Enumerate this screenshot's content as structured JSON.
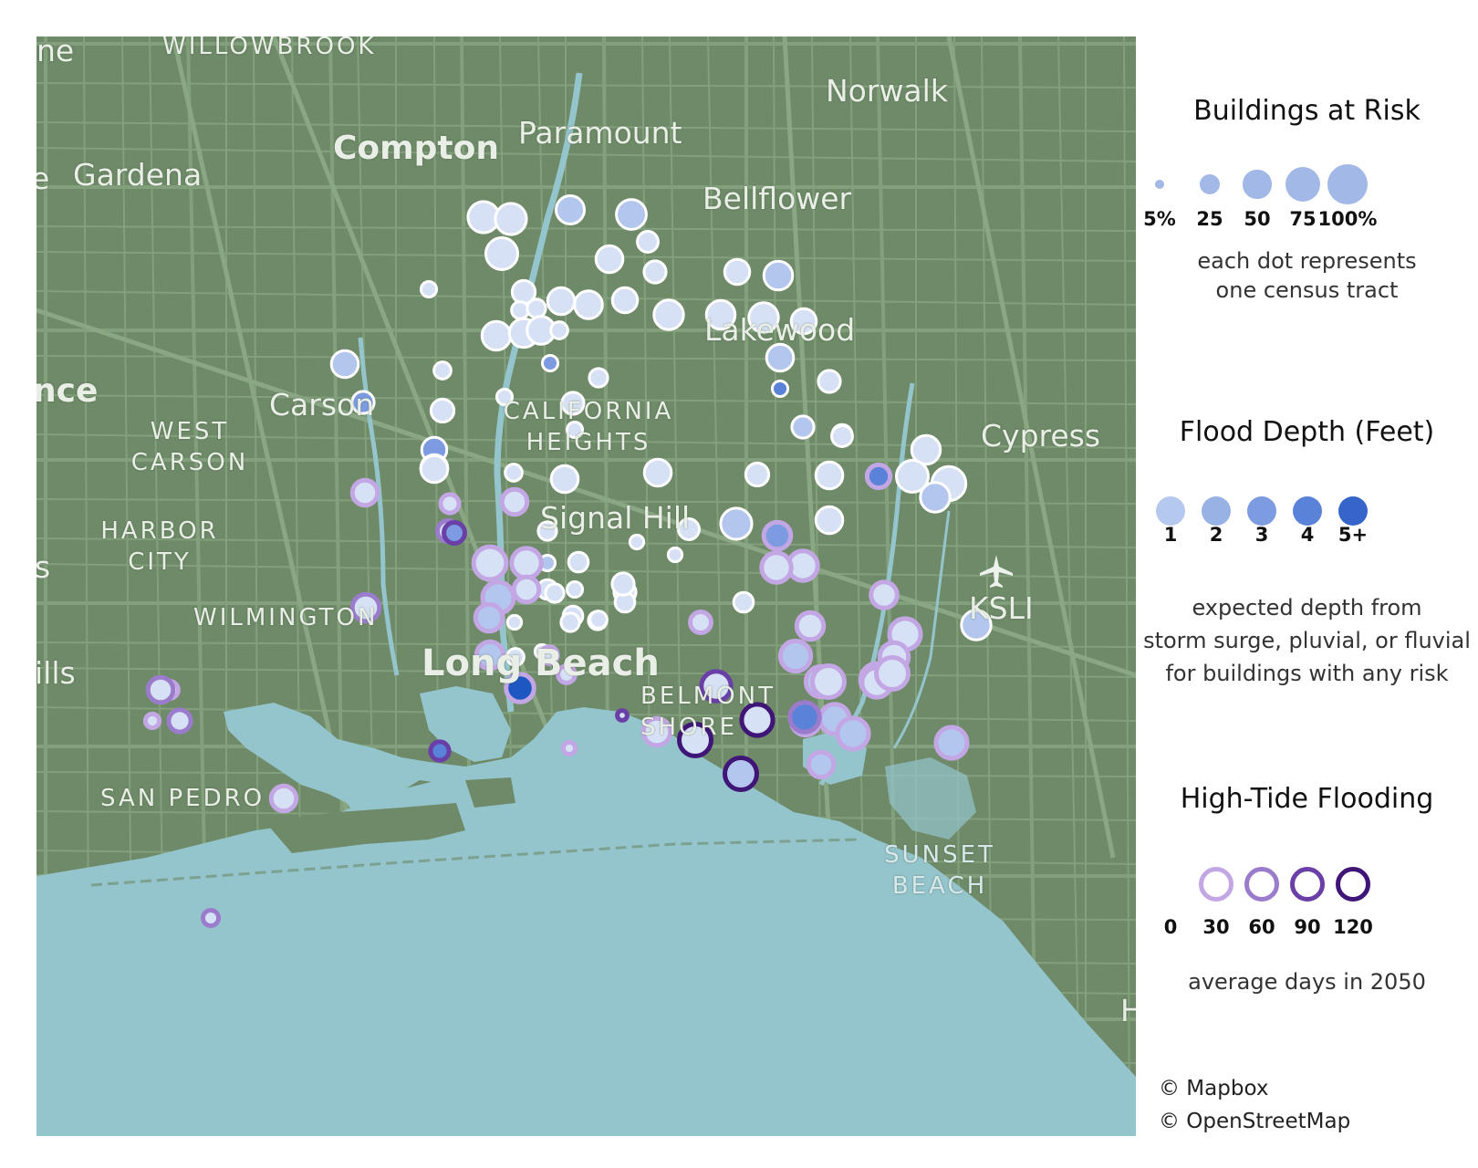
{
  "map": {
    "places": [
      {
        "id": "willowbrook",
        "label": "WILLOWBROOK"
      },
      {
        "id": "norwalk",
        "label": "Norwalk"
      },
      {
        "id": "paramount",
        "label": "Paramount"
      },
      {
        "id": "compton",
        "label": "Compton"
      },
      {
        "id": "gardena",
        "label": "Gardena"
      },
      {
        "id": "bellflower",
        "label": "Bellflower"
      },
      {
        "id": "lakewood",
        "label": "Lakewood"
      },
      {
        "id": "carson",
        "label": "Carson"
      },
      {
        "id": "west-carson",
        "label": "WEST CARSON"
      },
      {
        "id": "california-heights",
        "label": "CALIFORNIA HEIGHTS"
      },
      {
        "id": "cypress",
        "label": "Cypress"
      },
      {
        "id": "harbor-city",
        "label": "HARBOR CITY"
      },
      {
        "id": "signal-hill",
        "label": "Signal Hill"
      },
      {
        "id": "wilmington",
        "label": "WILMINGTON"
      },
      {
        "id": "ksli",
        "label": "KSLI"
      },
      {
        "id": "long-beach",
        "label": "Long Beach"
      },
      {
        "id": "belmont-shore",
        "label": "BELMONT SHORE"
      },
      {
        "id": "san-pedro",
        "label": "SAN PEDRO"
      },
      {
        "id": "sunset-beach",
        "label": "SUNSET BEACH"
      },
      {
        "id": "edge-ne",
        "label": "ne"
      },
      {
        "id": "edge-nce",
        "label": "nce"
      },
      {
        "id": "edge-ills",
        "label": "ills"
      },
      {
        "id": "edge-s",
        "label": "s"
      },
      {
        "id": "edge-e",
        "label": "e"
      },
      {
        "id": "edge-h",
        "label": "H"
      }
    ],
    "airport_icon": "airplane-icon"
  },
  "tracts": [
    {
      "risk": 40,
      "depth": 1,
      "tide": 0
    },
    {
      "risk": 40,
      "depth": 1,
      "tide": 0
    },
    {
      "risk": 33,
      "depth": 2,
      "tide": 0
    },
    {
      "risk": 37,
      "depth": 2,
      "tide": 0
    },
    {
      "risk": 42,
      "depth": 1,
      "tide": 0
    },
    {
      "risk": 18,
      "depth": 1,
      "tide": 0
    },
    {
      "risk": 30,
      "depth": 1,
      "tide": 0
    },
    {
      "risk": 20,
      "depth": 1,
      "tide": 0
    },
    {
      "risk": 10,
      "depth": 1,
      "tide": 0
    },
    {
      "risk": 22,
      "depth": 1,
      "tide": 0
    },
    {
      "risk": 26,
      "depth": 1,
      "tide": 0
    },
    {
      "risk": 10,
      "depth": 3,
      "tide": 0
    },
    {
      "risk": 12,
      "depth": 1,
      "tide": 0
    },
    {
      "risk": 14,
      "depth": 1,
      "tide": 0
    },
    {
      "risk": 30,
      "depth": 1,
      "tide": 0
    },
    {
      "risk": 32,
      "depth": 1,
      "tide": 0
    },
    {
      "risk": 26,
      "depth": 1,
      "tide": 0
    },
    {
      "risk": 36,
      "depth": 1,
      "tide": 0
    },
    {
      "risk": 34,
      "depth": 1,
      "tide": 0
    },
    {
      "risk": 34,
      "depth": 2,
      "tide": 0
    },
    {
      "risk": 36,
      "depth": 1,
      "tide": 0
    },
    {
      "risk": 26,
      "depth": 1,
      "tide": 0
    },
    {
      "risk": 34,
      "depth": 1,
      "tide": 0
    },
    {
      "risk": 34,
      "depth": 1,
      "tide": 0
    },
    {
      "risk": 32,
      "depth": 1,
      "tide": 0
    },
    {
      "risk": 12,
      "depth": 1,
      "tide": 0
    },
    {
      "risk": 30,
      "depth": 2,
      "tide": 0
    },
    {
      "risk": 20,
      "depth": 3,
      "tide": 0
    },
    {
      "risk": 30,
      "depth": 2,
      "tide": 0
    },
    {
      "risk": 10,
      "depth": 4,
      "tide": 0
    },
    {
      "risk": 12,
      "depth": 1,
      "tide": 0
    },
    {
      "risk": 22,
      "depth": 1,
      "tide": 0
    },
    {
      "risk": 10,
      "depth": 1,
      "tide": 0
    },
    {
      "risk": 14,
      "depth": 1,
      "tide": 0
    },
    {
      "risk": 20,
      "depth": 1,
      "tide": 0
    },
    {
      "risk": 10,
      "depth": 1,
      "tide": 0
    },
    {
      "risk": 8,
      "depth": 1,
      "tide": 0
    },
    {
      "risk": 16,
      "depth": 2,
      "tide": 0
    },
    {
      "risk": 26,
      "depth": 3,
      "tide": 0
    },
    {
      "risk": 20,
      "depth": 2,
      "tide": 0
    },
    {
      "risk": 20,
      "depth": 1,
      "tide": 0
    },
    {
      "risk": 30,
      "depth": 1,
      "tide": 0
    },
    {
      "risk": 16,
      "depth": 1,
      "tide": 0
    },
    {
      "risk": 18,
      "depth": 1,
      "tide": 0
    },
    {
      "risk": 30,
      "depth": 1,
      "tide": 0
    },
    {
      "risk": 12,
      "depth": 1,
      "tide": 0
    },
    {
      "risk": 30,
      "depth": 1,
      "tide": 0
    },
    {
      "risk": 40,
      "depth": 2,
      "tide": 0
    },
    {
      "risk": 30,
      "depth": 1,
      "tide": 0
    },
    {
      "risk": 22,
      "depth": 1,
      "tide": 0
    },
    {
      "risk": 30,
      "depth": 1,
      "tide": 0
    },
    {
      "risk": 30,
      "depth": 1,
      "tide": 0
    },
    {
      "risk": 18,
      "depth": 1,
      "tide": 0
    },
    {
      "risk": 14,
      "depth": 1,
      "tide": 0
    },
    {
      "risk": 34,
      "depth": 1,
      "tide": 0
    },
    {
      "risk": 48,
      "depth": 1,
      "tide": 0
    },
    {
      "risk": 42,
      "depth": 1,
      "tide": 0
    },
    {
      "risk": 36,
      "depth": 2,
      "tide": 0
    },
    {
      "risk": 36,
      "depth": 2,
      "tide": 0
    },
    {
      "risk": 22,
      "depth": 4,
      "tide": 30
    },
    {
      "risk": 10,
      "depth": 2,
      "tide": 0
    },
    {
      "risk": 16,
      "depth": 1,
      "tide": 0
    },
    {
      "risk": 10,
      "depth": 1,
      "tide": 0
    },
    {
      "risk": 8,
      "depth": 1,
      "tide": 0
    },
    {
      "risk": 8,
      "depth": 1,
      "tide": 0
    },
    {
      "risk": 16,
      "depth": 1,
      "tide": 0
    },
    {
      "risk": 20,
      "depth": 1,
      "tide": 0
    },
    {
      "risk": 16,
      "depth": 1,
      "tide": 0
    },
    {
      "risk": 16,
      "depth": 1,
      "tide": 0
    },
    {
      "risk": 16,
      "depth": 1,
      "tide": 0
    },
    {
      "risk": 14,
      "depth": 1,
      "tide": 0
    },
    {
      "risk": 14,
      "depth": 1,
      "tide": 0
    },
    {
      "risk": 14,
      "depth": 1,
      "tide": 0
    },
    {
      "risk": 20,
      "depth": 1,
      "tide": 0
    },
    {
      "risk": 12,
      "depth": 1,
      "tide": 0
    },
    {
      "risk": 8,
      "depth": 1,
      "tide": 0
    },
    {
      "risk": 8,
      "depth": 1,
      "tide": 0
    },
    {
      "risk": 12,
      "depth": 1,
      "tide": 0
    },
    {
      "risk": 26,
      "depth": 1,
      "tide": 30
    },
    {
      "risk": 14,
      "depth": 1,
      "tide": 30
    },
    {
      "risk": 18,
      "depth": 1,
      "tide": 60
    },
    {
      "risk": 26,
      "depth": 1,
      "tide": 30
    },
    {
      "risk": 44,
      "depth": 1,
      "tide": 30
    },
    {
      "risk": 36,
      "depth": 1,
      "tide": 30
    },
    {
      "risk": 40,
      "depth": 2,
      "tide": 30
    },
    {
      "risk": 26,
      "depth": 1,
      "tide": 30
    },
    {
      "risk": 30,
      "depth": 2,
      "tide": 30
    },
    {
      "risk": 30,
      "depth": 2,
      "tide": 30
    },
    {
      "risk": 32,
      "depth": 5,
      "tide": 30
    },
    {
      "risk": 12,
      "depth": 1,
      "tide": 30
    },
    {
      "risk": 12,
      "depth": 1,
      "tide": 30
    },
    {
      "risk": 6,
      "depth": 1,
      "tide": 30
    },
    {
      "risk": 30,
      "depth": 1,
      "tide": 30
    },
    {
      "risk": 36,
      "depth": 1,
      "tide": 30
    },
    {
      "risk": 30,
      "depth": 3,
      "tide": 30
    },
    {
      "risk": 18,
      "depth": 1,
      "tide": 30
    },
    {
      "risk": 30,
      "depth": 1,
      "tide": 30
    },
    {
      "risk": 28,
      "depth": 1,
      "tide": 30
    },
    {
      "risk": 36,
      "depth": 1,
      "tide": 30
    },
    {
      "risk": 40,
      "depth": 1,
      "tide": 30
    },
    {
      "risk": 38,
      "depth": 2,
      "tide": 30
    },
    {
      "risk": 38,
      "depth": 2,
      "tide": 30
    },
    {
      "risk": 42,
      "depth": 1,
      "tide": 30
    },
    {
      "risk": 44,
      "depth": 1,
      "tide": 30
    },
    {
      "risk": 34,
      "depth": 1,
      "tide": 30
    },
    {
      "risk": 36,
      "depth": 1,
      "tide": 30
    },
    {
      "risk": 36,
      "depth": 2,
      "tide": 30
    },
    {
      "risk": 42,
      "depth": 1,
      "tide": 30
    },
    {
      "risk": 34,
      "depth": 4,
      "tide": 30
    },
    {
      "risk": 40,
      "depth": 2,
      "tide": 30
    },
    {
      "risk": 26,
      "depth": 2,
      "tide": 30
    },
    {
      "risk": 12,
      "depth": 1,
      "tide": 30
    },
    {
      "risk": 40,
      "depth": 2,
      "tide": 30
    },
    {
      "risk": 26,
      "depth": 1,
      "tide": 30
    },
    {
      "risk": 8,
      "depth": 1,
      "tide": 30
    },
    {
      "risk": 20,
      "depth": 1,
      "tide": 60
    },
    {
      "risk": 26,
      "depth": 1,
      "tide": 60
    },
    {
      "risk": 14,
      "depth": 4,
      "tide": 90
    },
    {
      "risk": 30,
      "depth": 1,
      "tide": 60
    },
    {
      "risk": 36,
      "depth": 4,
      "tide": 60
    },
    {
      "risk": 36,
      "depth": 1,
      "tide": 90
    },
    {
      "risk": 42,
      "depth": 1,
      "tide": 120
    },
    {
      "risk": 40,
      "depth": 1,
      "tide": 120
    },
    {
      "risk": 42,
      "depth": 2,
      "tide": 120
    },
    {
      "risk": 4,
      "depth": 1,
      "tide": 90
    },
    {
      "risk": 18,
      "depth": 3,
      "tide": 90
    },
    {
      "risk": 10,
      "depth": 1,
      "tide": 60
    }
  ],
  "legend": {
    "risk": {
      "title": "Buildings at Risk",
      "ticks": [
        {
          "label": "5%",
          "value": 5
        },
        {
          "label": "25",
          "value": 25
        },
        {
          "label": "50",
          "value": 50
        },
        {
          "label": "75",
          "value": 75
        },
        {
          "label": "100%",
          "value": 100
        }
      ],
      "desc_line1": "each dot represents",
      "desc_line2": "one census tract",
      "color": "#a2b8e6"
    },
    "depth": {
      "title": "Flood Depth (Feet)",
      "ticks": [
        {
          "label": "1",
          "color": "#b5c9ee"
        },
        {
          "label": "2",
          "color": "#99b2e6"
        },
        {
          "label": "3",
          "color": "#7c9be0"
        },
        {
          "label": "4",
          "color": "#5a82d8"
        },
        {
          "label": "5+",
          "color": "#3565c9"
        }
      ],
      "desc_line1": "expected depth from",
      "desc_line2": "storm surge, pluvial, or fluvial",
      "desc_line3": "for buildings with any risk"
    },
    "tide": {
      "title": "High-Tide Flooding",
      "ticks": [
        {
          "label": "0",
          "color": "#ffffff"
        },
        {
          "label": "30",
          "color": "#c3a6e4"
        },
        {
          "label": "60",
          "color": "#9b7ccc"
        },
        {
          "label": "90",
          "color": "#6a3fa7"
        },
        {
          "label": "120",
          "color": "#3f1578"
        }
      ],
      "desc": "average days in 2050"
    }
  },
  "credits": {
    "mapbox": "© Mapbox",
    "osm": "© OpenStreetMap"
  },
  "colors": {
    "land": "#6e8a68",
    "water": "#94c4cc",
    "road": "#83a07c",
    "label": "#e9eee6",
    "ring_0": "#ffffff",
    "ring_30": "#c3a6e4",
    "ring_60": "#9b7ccc",
    "ring_90": "#6a3fa7",
    "ring_120": "#3f1578"
  }
}
